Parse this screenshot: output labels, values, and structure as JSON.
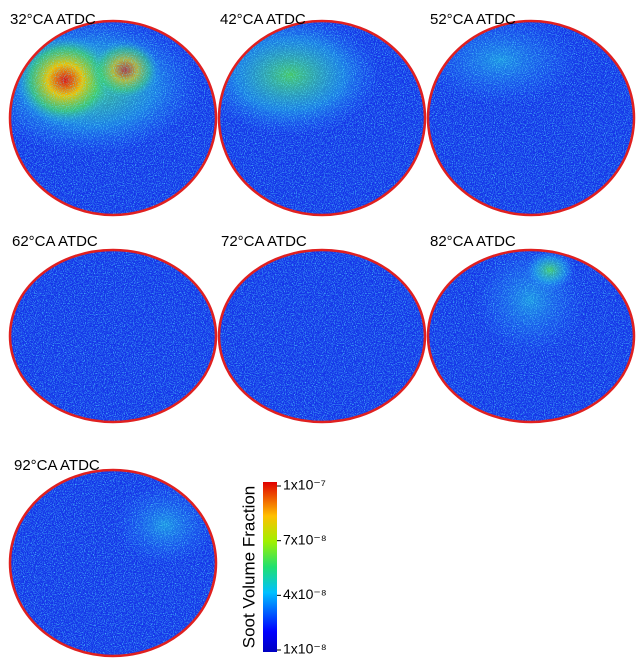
{
  "panels": [
    {
      "label": "32°CA ATDC"
    },
    {
      "label": "42°CA ATDC"
    },
    {
      "label": "52°CA ATDC"
    },
    {
      "label": "62°CA ATDC"
    },
    {
      "label": "72°CA ATDC"
    },
    {
      "label": "82°CA ATDC"
    },
    {
      "label": "92°CA ATDC"
    }
  ],
  "colorbar": {
    "label": "Soot Volume Fraction",
    "lim": [
      1e-08,
      1e-07
    ],
    "ticks": [
      {
        "value": 1e-07,
        "label": "1x10⁻⁷"
      },
      {
        "value": 7e-08,
        "label": "7x10⁻⁸"
      },
      {
        "value": 4e-08,
        "label": "4x10⁻⁸"
      },
      {
        "value": 1e-08,
        "label": "1x10⁻⁸"
      }
    ]
  }
}
